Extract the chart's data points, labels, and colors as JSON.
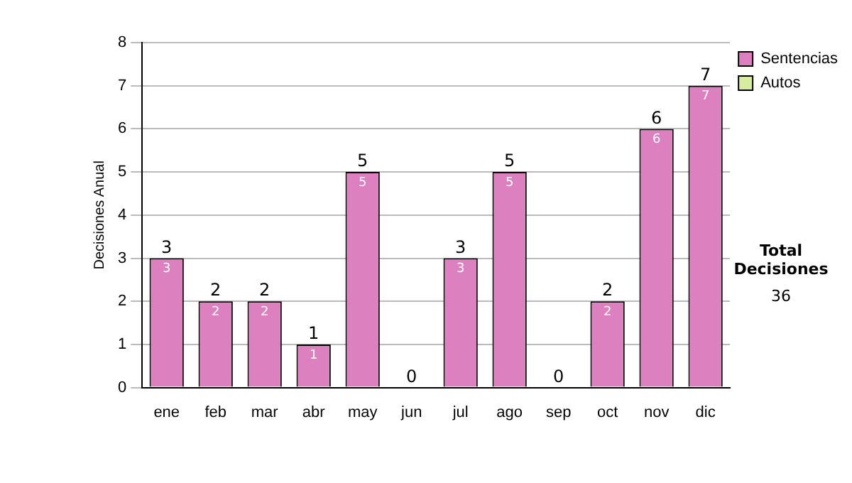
{
  "chart_data": {
    "type": "bar",
    "stacked": true,
    "ylabel": "Decisiones Anual",
    "categories": [
      "ene",
      "feb",
      "mar",
      "abr",
      "may",
      "jun",
      "jul",
      "ago",
      "sep",
      "oct",
      "nov",
      "dic"
    ],
    "series": [
      {
        "name": "Sentencias",
        "color": "#dd80c0",
        "values": [
          3,
          2,
          2,
          1,
          5,
          0,
          3,
          5,
          0,
          2,
          6,
          7
        ],
        "value_labels": [
          "3",
          "2",
          "2",
          "1",
          "5",
          null,
          "3",
          "5",
          null,
          "2",
          "6",
          "7"
        ]
      },
      {
        "name": "Autos",
        "color": "#d8eca0",
        "values": [
          0,
          0,
          0,
          0,
          0,
          0,
          0,
          0,
          0,
          0,
          0,
          0
        ]
      }
    ],
    "totals": [
      "3",
      "2",
      "2",
      "1",
      "5",
      "0",
      "3",
      "5",
      "0",
      "2",
      "6",
      "7"
    ],
    "ylim": [
      0,
      8
    ],
    "yticks": [
      0,
      1,
      2,
      3,
      4,
      5,
      6,
      7,
      8
    ],
    "grid": "y",
    "legend": "right",
    "annotations": [
      "Total Decisiones",
      "36"
    ]
  }
}
